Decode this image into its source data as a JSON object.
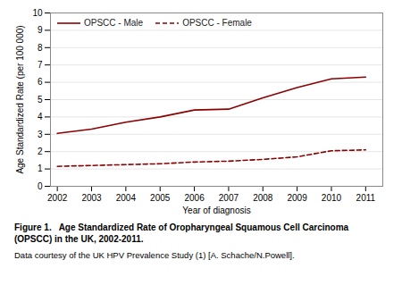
{
  "chart_data": {
    "type": "line",
    "title": "Figure 1.   Age Standardized Rate of Oropharyngeal Squamous Cell Carcinoma\n(OPSCC) in the UK, 2002-2011.",
    "subtitle": "Data courtesy of the UK HPV Prevalence Study (1) [A. Schache/N.Powell].",
    "xlabel": "Year of diagnosis",
    "ylabel": "Age Standardized Rate (per 100 000)",
    "x": [
      2002,
      2003,
      2004,
      2005,
      2006,
      2007,
      2008,
      2009,
      2010,
      2011
    ],
    "series": [
      {
        "name": "OPSCC - Male",
        "color": "#8B0000",
        "line_style": "solid",
        "values": [
          3.05,
          3.3,
          3.7,
          4.0,
          4.4,
          4.45,
          5.1,
          5.7,
          6.2,
          6.3
        ]
      },
      {
        "name": "OPSCC - Female",
        "color": "#8B0000",
        "line_style": "dashed",
        "values": [
          1.15,
          1.2,
          1.25,
          1.3,
          1.4,
          1.45,
          1.55,
          1.7,
          2.05,
          2.1
        ]
      }
    ],
    "xlim": [
      2001.8,
      2011.5
    ],
    "xticks": [
      2002,
      2003,
      2004,
      2005,
      2006,
      2007,
      2008,
      2009,
      2010,
      2011
    ],
    "ylim": [
      0,
      10
    ],
    "yticks": [
      0,
      1,
      2,
      3,
      4,
      5,
      6,
      7,
      8,
      9,
      10
    ],
    "grid": true,
    "legend": "upper left"
  }
}
